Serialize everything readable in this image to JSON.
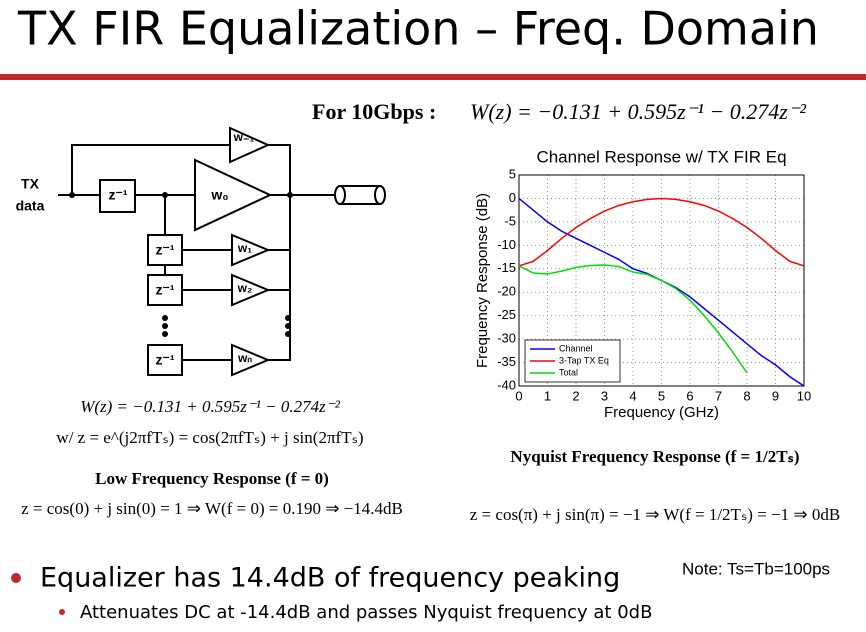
{
  "title": "TX FIR Equalization – Freq. Domain",
  "equation_top": {
    "label": "For 10Gbps :",
    "formula": "W(z) = −0.131 + 0.595z⁻¹ − 0.274z⁻²"
  },
  "diagram": {
    "input": [
      "TX",
      "data"
    ],
    "delays": [
      "z⁻¹",
      "z⁻¹",
      "z⁻¹",
      "z⁻¹"
    ],
    "taps": [
      "w₋₁",
      "w₀",
      "w₁",
      "w₂",
      "wₙ"
    ]
  },
  "equations_left": [
    "W(z) = −0.131 + 0.595z⁻¹ − 0.274z⁻²",
    "w/  z = e^(j2πfTₛ) = cos(2πfTₛ) + j sin(2πfTₛ)",
    "Low Frequency Response (f = 0)",
    "z = cos(0) + j sin(0) = 1 ⇒ W(f = 0) = 0.190 ⇒ −14.4dB"
  ],
  "equations_right": [
    "Nyquist Frequency Response (f = 1/2Tₛ)",
    "z = cos(π) + j sin(π) = −1 ⇒ W(f = 1/2Tₛ) = −1 ⇒ 0dB"
  ],
  "note": "Note: Ts=Tb=100ps",
  "bullets": [
    {
      "text": "Equalizer has 14.4dB of frequency peaking",
      "sub": [
        "Attenuates DC at -14.4dB and passes Nyquist frequency at 0dB"
      ]
    }
  ],
  "chart_data": {
    "type": "line",
    "title": "Channel Response w/ TX FIR Eq",
    "x_label": "Frequency (GHz)",
    "y_label": "Frequency Response (dB)",
    "x": [
      0,
      0.5,
      1,
      1.5,
      2,
      2.5,
      3,
      3.5,
      4,
      4.5,
      5,
      5.5,
      6,
      6.5,
      7,
      7.5,
      8,
      8.5,
      9,
      9.5,
      10
    ],
    "series": [
      {
        "name": "Channel",
        "color": "#0000ff",
        "values": [
          0,
          -2.5,
          -5,
          -7,
          -8.5,
          -10,
          -11.5,
          -13,
          -15,
          -16,
          -17.5,
          -19,
          -21,
          -23.5,
          -26,
          -28.5,
          -31,
          -33.5,
          -35.5,
          -38,
          -40
        ]
      },
      {
        "name": "3-Tap TX Eq",
        "color": "#ff0000",
        "values": [
          -14.4,
          -13.4,
          -11.1,
          -8.5,
          -6.2,
          -4.3,
          -2.7,
          -1.5,
          -0.7,
          -0.2,
          0,
          -0.2,
          -0.7,
          -1.5,
          -2.7,
          -4.3,
          -6.2,
          -8.5,
          -11.1,
          -13.4,
          -14.4
        ]
      },
      {
        "name": "Total",
        "color": "#00dd00",
        "values": [
          -14.4,
          -15.9,
          -16.1,
          -15.5,
          -14.7,
          -14.3,
          -14.2,
          -14.5,
          -15.7,
          -16.2,
          -17.5,
          -19.2,
          -21.7,
          -25,
          -28.7,
          -32.8,
          -37.2,
          null,
          null,
          null,
          null
        ]
      }
    ],
    "xlim": [
      0,
      10
    ],
    "xticks": [
      0,
      1,
      2,
      3,
      4,
      5,
      6,
      7,
      8,
      9,
      10
    ],
    "ylim": [
      -40,
      5
    ],
    "yticks": [
      5,
      0,
      -5,
      -10,
      -15,
      -20,
      -25,
      -30,
      -35,
      -40
    ],
    "grid": true,
    "legend": "lower left"
  }
}
